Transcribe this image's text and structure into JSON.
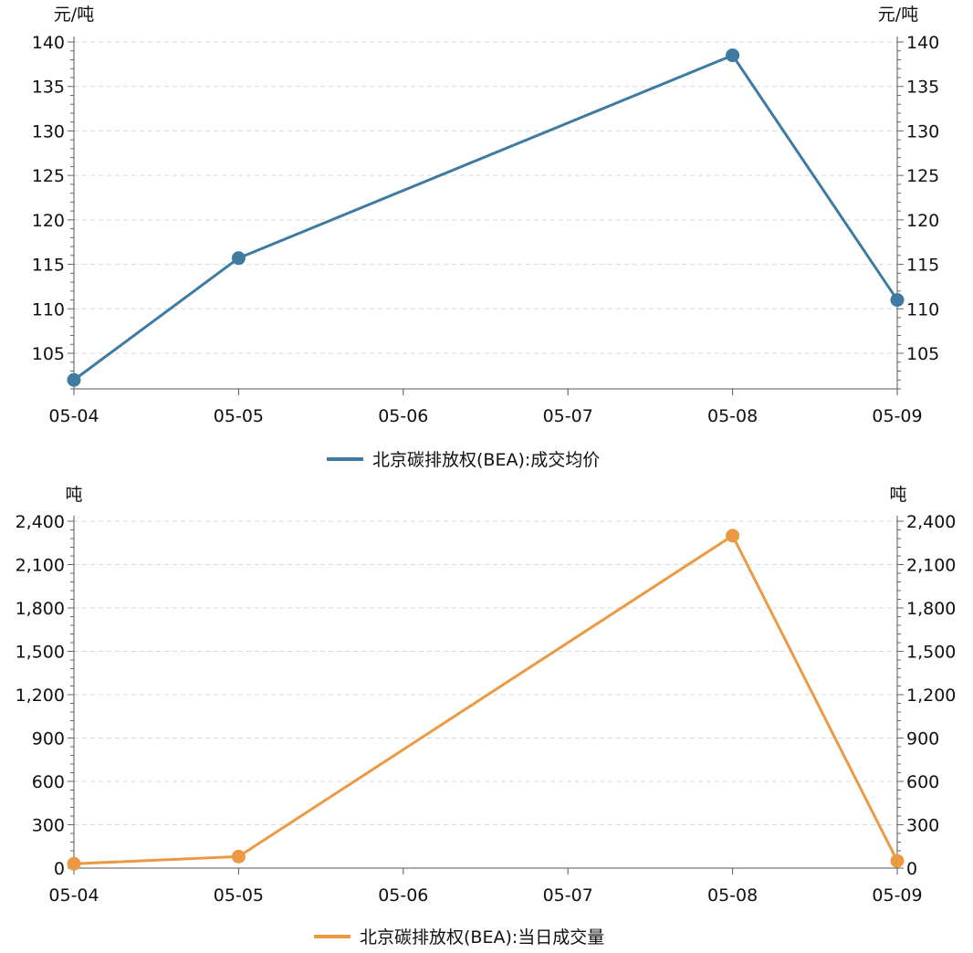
{
  "chart_data": [
    {
      "type": "line",
      "title": "",
      "y_unit_left": "元/吨",
      "y_unit_right": "元/吨",
      "categories": [
        "05-04",
        "05-05",
        "05-06",
        "05-07",
        "05-08",
        "05-09"
      ],
      "yticks": [
        "105",
        "110",
        "115",
        "120",
        "125",
        "130",
        "135",
        "140"
      ],
      "ylim": [
        101,
        140
      ],
      "grid": true,
      "legend_position": "bottom-center",
      "series": [
        {
          "name": "北京碳排放权(BEA):成交均价",
          "color": "#3f7ba0",
          "points": [
            {
              "x": "05-04",
              "y": 102.0
            },
            {
              "x": "05-05",
              "y": 115.7
            },
            {
              "x": "05-08",
              "y": 138.5
            },
            {
              "x": "05-09",
              "y": 111.0
            }
          ]
        }
      ]
    },
    {
      "type": "line",
      "title": "",
      "y_unit_left": "吨",
      "y_unit_right": "吨",
      "categories": [
        "05-04",
        "05-05",
        "05-06",
        "05-07",
        "05-08",
        "05-09"
      ],
      "yticks": [
        "0",
        "300",
        "600",
        "900",
        "1,200",
        "1,500",
        "1,800",
        "2,100",
        "2,400"
      ],
      "ylim": [
        0,
        2400
      ],
      "grid": true,
      "legend_position": "bottom-center",
      "series": [
        {
          "name": "北京碳排放权(BEA):当日成交量",
          "color": "#eb9a43",
          "points": [
            {
              "x": "05-04",
              "y": 30
            },
            {
              "x": "05-05",
              "y": 80
            },
            {
              "x": "05-08",
              "y": 2300
            },
            {
              "x": "05-09",
              "y": 50
            }
          ]
        }
      ]
    }
  ]
}
